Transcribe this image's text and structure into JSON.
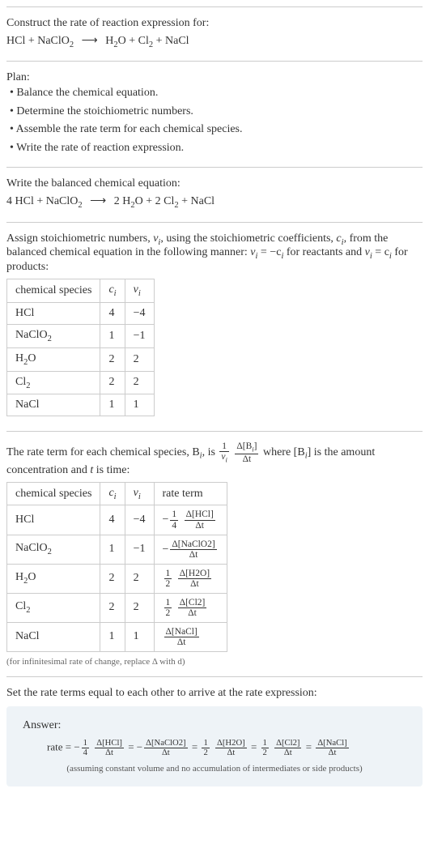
{
  "construct": {
    "title": "Construct the rate of reaction expression for:",
    "equation_lhs": "HCl + NaClO",
    "equation_sub1": "2",
    "equation_rhs1": "H",
    "equation_rhs1_sub": "2",
    "equation_rhs2": "O + Cl",
    "equation_rhs2_sub": "2",
    "equation_rhs3": " + NaCl"
  },
  "plan": {
    "title": "Plan:",
    "b1": "• Balance the chemical equation.",
    "b2": "• Determine the stoichiometric numbers.",
    "b3": "• Assemble the rate term for each chemical species.",
    "b4": "• Write the rate of reaction expression."
  },
  "balanced": {
    "title": "Write the balanced chemical equation:",
    "lhs1": "4 HCl + NaClO",
    "lhs1_sub": "2",
    "rhs1": "2 H",
    "rhs1_sub": "2",
    "rhs2": "O + 2 Cl",
    "rhs2_sub": "2",
    "rhs3": " + NaCl"
  },
  "assign": {
    "text1": "Assign stoichiometric numbers, ",
    "nu": "ν",
    "sub_i": "i",
    "text2": ", using the stoichiometric coefficients, ",
    "c": "c",
    "text3": ", from the balanced chemical equation in the following manner: ",
    "eq1_lhs": "ν",
    "eq1_rhs": " = −c",
    "text4": " for reactants and ",
    "eq2_rhs": " = c",
    "text5": " for products:"
  },
  "table1": {
    "headers": {
      "h1": "chemical species",
      "h2": "c",
      "h2sub": "i",
      "h3": "ν",
      "h3sub": "i"
    },
    "rows": [
      {
        "sp": "HCl",
        "sub": "",
        "c": "4",
        "nu": "−4"
      },
      {
        "sp": "NaClO",
        "sub": "2",
        "c": "1",
        "nu": "−1"
      },
      {
        "sp": "H",
        "sub": "2",
        "sp2": "O",
        "c": "2",
        "nu": "2"
      },
      {
        "sp": "Cl",
        "sub": "2",
        "c": "2",
        "nu": "2"
      },
      {
        "sp": "NaCl",
        "sub": "",
        "c": "1",
        "nu": "1"
      }
    ]
  },
  "rate_intro": {
    "t1": "The rate term for each chemical species, B",
    "t2": ", is ",
    "frac1_num": "1",
    "frac1_den_base": "ν",
    "frac2_num_pre": "Δ[B",
    "frac2_num_post": "]",
    "frac2_den": "Δt",
    "t3": " where [B",
    "t4": "] is the amount concentration and ",
    "t_var": "t",
    "t5": " is time:"
  },
  "table2": {
    "headers": {
      "h1": "chemical species",
      "h2": "c",
      "h2sub": "i",
      "h3": "ν",
      "h3sub": "i",
      "h4": "rate term"
    },
    "rows": [
      {
        "sp": "HCl",
        "sub": "",
        "c": "4",
        "nu": "−4",
        "sign": "−",
        "coef_num": "1",
        "coef_den": "4",
        "conc": "Δ[HCl]",
        "dt": "Δt"
      },
      {
        "sp": "NaClO",
        "sub": "2",
        "c": "1",
        "nu": "−1",
        "sign": "−",
        "coef_num": "",
        "coef_den": "",
        "conc": "Δ[NaClO2]",
        "dt": "Δt"
      },
      {
        "sp": "H",
        "sub": "2",
        "sp2": "O",
        "c": "2",
        "nu": "2",
        "sign": "",
        "coef_num": "1",
        "coef_den": "2",
        "conc": "Δ[H2O]",
        "dt": "Δt"
      },
      {
        "sp": "Cl",
        "sub": "2",
        "c": "2",
        "nu": "2",
        "sign": "",
        "coef_num": "1",
        "coef_den": "2",
        "conc": "Δ[Cl2]",
        "dt": "Δt"
      },
      {
        "sp": "NaCl",
        "sub": "",
        "c": "1",
        "nu": "1",
        "sign": "",
        "coef_num": "",
        "coef_den": "",
        "conc": "Δ[NaCl]",
        "dt": "Δt"
      }
    ],
    "note": "(for infinitesimal rate of change, replace Δ with d)"
  },
  "final": {
    "title": "Set the rate terms equal to each other to arrive at the rate expression:",
    "answer_label": "Answer:",
    "rate": "rate = −",
    "f1_num": "1",
    "f1_den": "4",
    "f1c_num": "Δ[HCl]",
    "f1c_den": "Δt",
    "eq": " = −",
    "f2c_num": "Δ[NaClO2]",
    "f2c_den": "Δt",
    "eq2": " = ",
    "f3_num": "1",
    "f3_den": "2",
    "f3c_num": "Δ[H2O]",
    "f3c_den": "Δt",
    "f4_num": "1",
    "f4_den": "2",
    "f4c_num": "Δ[Cl2]",
    "f4c_den": "Δt",
    "f5c_num": "Δ[NaCl]",
    "f5c_den": "Δt",
    "note": "(assuming constant volume and no accumulation of intermediates or side products)"
  },
  "colors": {
    "border": "#ccc",
    "text": "#333",
    "answer_bg": "#eef3f7",
    "note": "#666"
  }
}
